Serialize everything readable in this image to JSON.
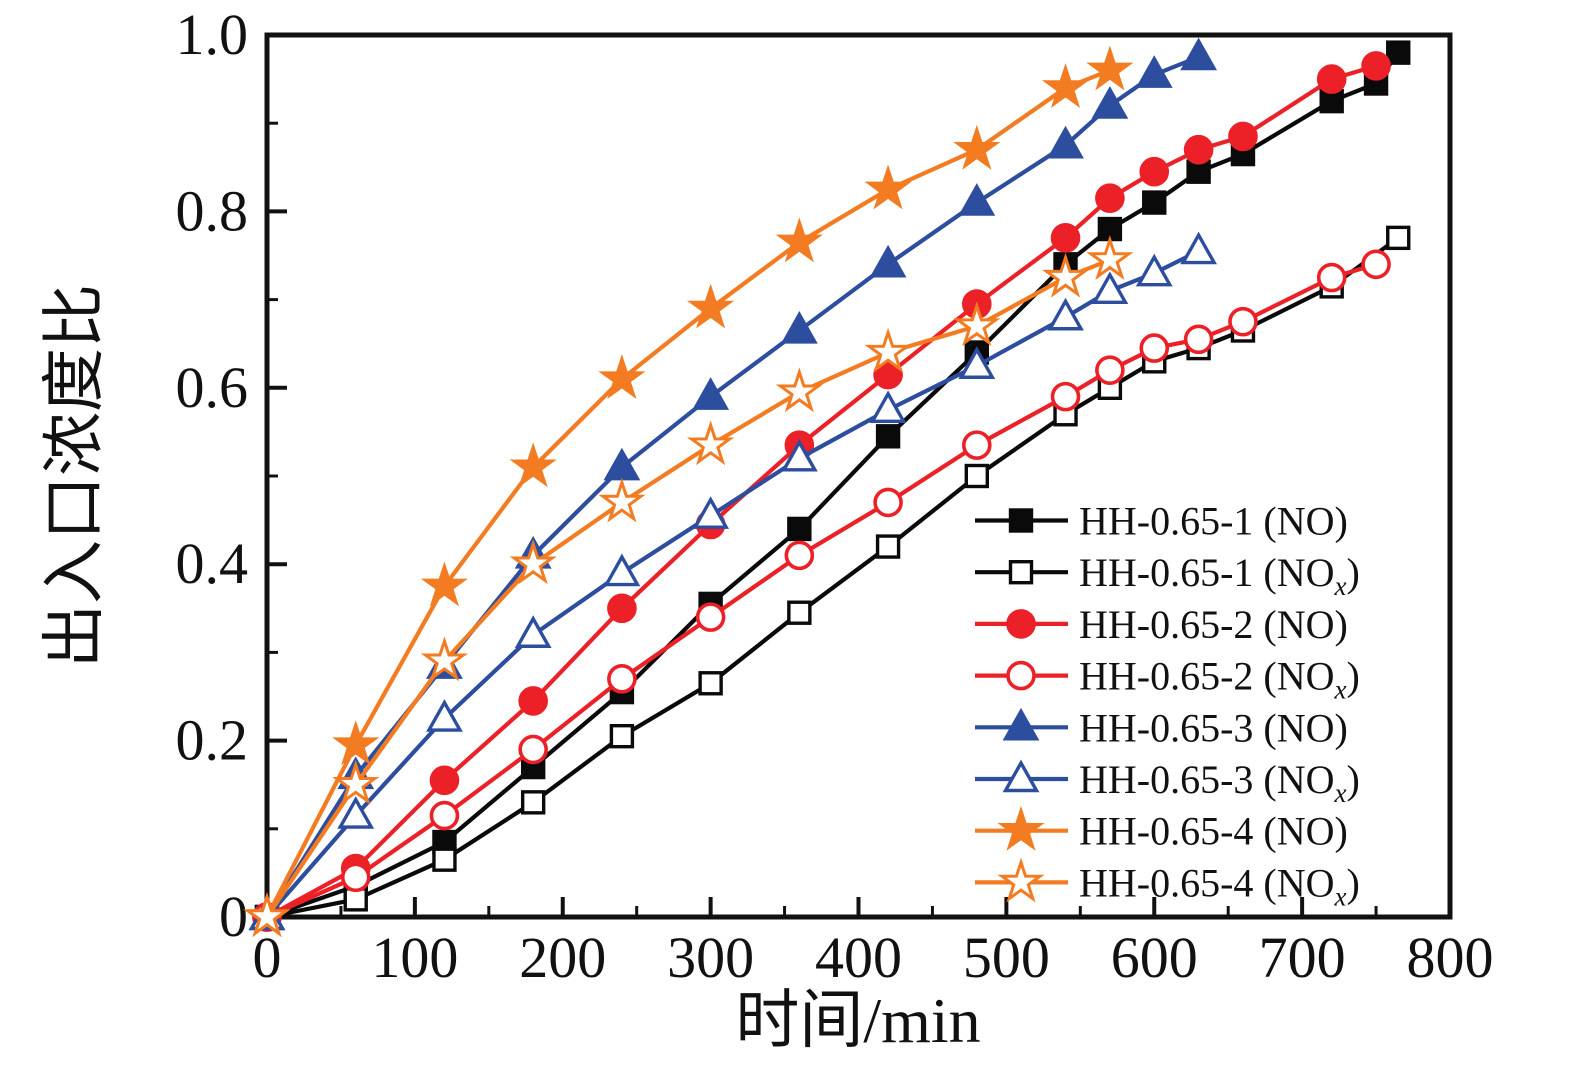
{
  "chart_data": {
    "type": "line",
    "title": "",
    "xlabel": "时间/min",
    "ylabel": "出入口浓度比",
    "xlim": [
      0,
      800
    ],
    "ylim": [
      0,
      1.0
    ],
    "grid": false,
    "legend_position": "inside lower right",
    "axis_color": "#111111",
    "x_major_ticks": {
      "values": [
        0,
        100,
        200,
        300,
        400,
        500,
        600,
        700,
        800
      ],
      "labels": [
        "0",
        "100",
        "200",
        "300",
        "400",
        "500",
        "600",
        "700",
        "800"
      ]
    },
    "x_minor_ticks": [
      50,
      150,
      250,
      350,
      450,
      550,
      650,
      750
    ],
    "y_major_ticks": {
      "values": [
        0,
        0.2,
        0.4,
        0.6,
        0.8,
        1.0
      ],
      "labels": [
        "0",
        "0.2",
        "0.4",
        "0.6",
        "0.8",
        "1.0"
      ]
    },
    "y_minor_ticks": [
      0.1,
      0.3,
      0.5,
      0.7,
      0.9
    ],
    "series": [
      {
        "name": "HH-0.65-1 (NO)",
        "label_prefix": "HH-0.65-1 (NO",
        "label_sub": "",
        "label_suffix": ")",
        "marker": "square",
        "filled": true,
        "color": "#0a0a0a",
        "x": [
          0,
          60,
          120,
          180,
          240,
          300,
          360,
          420,
          480,
          540,
          570,
          600,
          630,
          660,
          720,
          750,
          765
        ],
        "y": [
          0,
          0.035,
          0.085,
          0.17,
          0.255,
          0.355,
          0.44,
          0.545,
          0.64,
          0.74,
          0.78,
          0.81,
          0.845,
          0.865,
          0.925,
          0.945,
          0.98
        ]
      },
      {
        "name": "HH-0.65-1 (NOx)",
        "label_prefix": "HH-0.65-1 (NO",
        "label_sub": "x",
        "label_suffix": ")",
        "marker": "square",
        "filled": false,
        "color": "#0a0a0a",
        "x": [
          0,
          60,
          120,
          180,
          240,
          300,
          360,
          420,
          480,
          540,
          570,
          600,
          630,
          660,
          720,
          765
        ],
        "y": [
          0,
          0.02,
          0.065,
          0.13,
          0.205,
          0.265,
          0.345,
          0.42,
          0.5,
          0.57,
          0.6,
          0.63,
          0.645,
          0.665,
          0.715,
          0.77
        ]
      },
      {
        "name": "HH-0.65-2 (NO)",
        "label_prefix": "HH-0.65-2 (NO",
        "label_sub": "",
        "label_suffix": ")",
        "marker": "circle",
        "filled": true,
        "color": "#ec2027",
        "x": [
          0,
          60,
          120,
          180,
          240,
          300,
          360,
          420,
          480,
          540,
          570,
          600,
          630,
          660,
          720,
          750
        ],
        "y": [
          0,
          0.055,
          0.155,
          0.245,
          0.35,
          0.445,
          0.535,
          0.615,
          0.695,
          0.77,
          0.815,
          0.845,
          0.87,
          0.885,
          0.95,
          0.965
        ]
      },
      {
        "name": "HH-0.65-2 (NOx)",
        "label_prefix": "HH-0.65-2 (NO",
        "label_sub": "x",
        "label_suffix": ")",
        "marker": "circle",
        "filled": false,
        "color": "#ec2027",
        "x": [
          0,
          60,
          120,
          180,
          240,
          300,
          360,
          420,
          480,
          540,
          570,
          600,
          630,
          660,
          720,
          750
        ],
        "y": [
          0,
          0.045,
          0.115,
          0.19,
          0.27,
          0.34,
          0.41,
          0.47,
          0.535,
          0.59,
          0.62,
          0.645,
          0.655,
          0.675,
          0.725,
          0.74
        ]
      },
      {
        "name": "HH-0.65-3 (NO)",
        "label_prefix": "HH-0.65-3 (NO",
        "label_sub": "",
        "label_suffix": ")",
        "marker": "triangle",
        "filled": true,
        "color": "#2d4e9e",
        "x": [
          0,
          60,
          120,
          180,
          240,
          300,
          360,
          420,
          480,
          540,
          570,
          600,
          630
        ],
        "y": [
          0,
          0.16,
          0.285,
          0.41,
          0.51,
          0.59,
          0.665,
          0.74,
          0.81,
          0.875,
          0.92,
          0.955,
          0.975
        ]
      },
      {
        "name": "HH-0.65-3 (NOx)",
        "label_prefix": "HH-0.65-3 (NO",
        "label_sub": "x",
        "label_suffix": ")",
        "marker": "triangle",
        "filled": false,
        "color": "#2d4e9e",
        "x": [
          0,
          60,
          120,
          180,
          240,
          300,
          360,
          420,
          480,
          540,
          570,
          600,
          630
        ],
        "y": [
          0,
          0.115,
          0.225,
          0.32,
          0.39,
          0.455,
          0.52,
          0.575,
          0.625,
          0.68,
          0.71,
          0.73,
          0.755
        ]
      },
      {
        "name": "HH-0.65-4 (NO)",
        "label_prefix": "HH-0.65-4 (NO",
        "label_sub": "",
        "label_suffix": ")",
        "marker": "star",
        "filled": true,
        "color": "#f37b21",
        "x": [
          0,
          60,
          120,
          180,
          240,
          300,
          360,
          420,
          480,
          540,
          570
        ],
        "y": [
          0,
          0.195,
          0.375,
          0.51,
          0.61,
          0.69,
          0.765,
          0.825,
          0.87,
          0.94,
          0.96
        ]
      },
      {
        "name": "HH-0.65-4 (NOx)",
        "label_prefix": "HH-0.65-4 (NO",
        "label_sub": "x",
        "label_suffix": ")",
        "marker": "star",
        "filled": false,
        "color": "#f37b21",
        "x": [
          0,
          60,
          120,
          180,
          240,
          300,
          360,
          420,
          480,
          540,
          570
        ],
        "y": [
          0,
          0.15,
          0.29,
          0.4,
          0.47,
          0.535,
          0.595,
          0.64,
          0.67,
          0.725,
          0.745
        ]
      }
    ]
  }
}
